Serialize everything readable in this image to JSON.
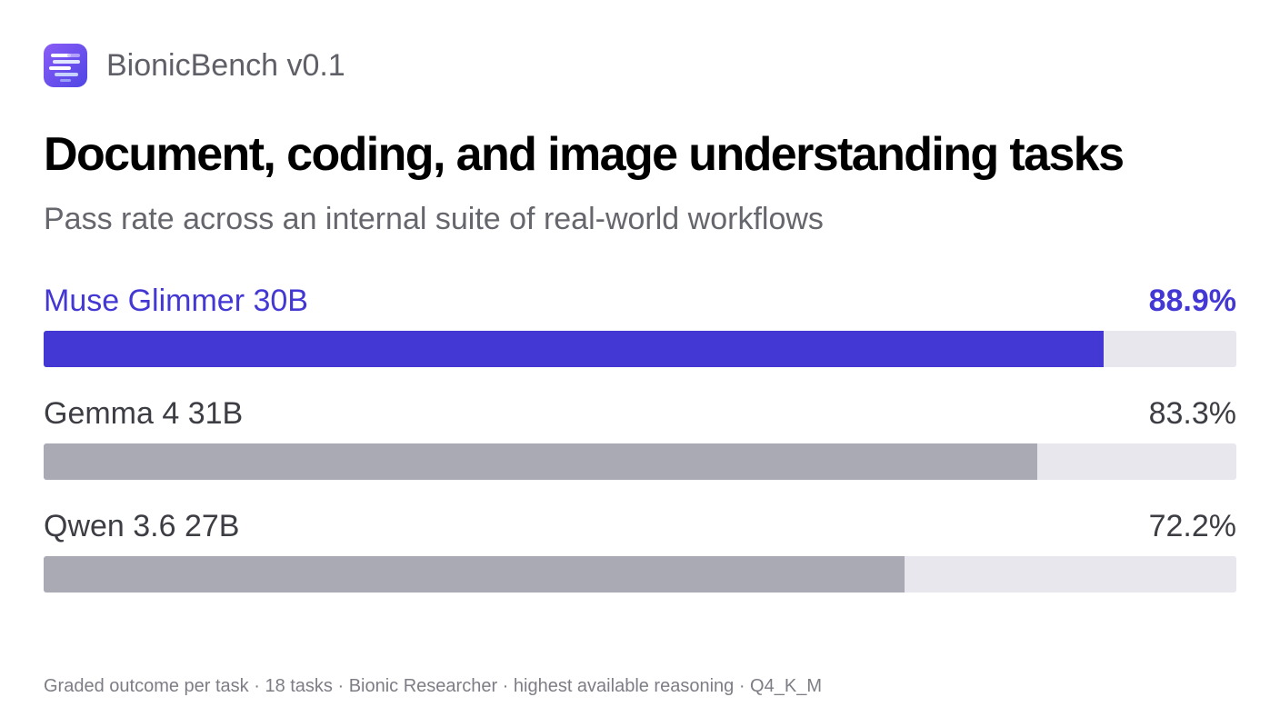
{
  "app": {
    "name": "BionicBench v0.1",
    "logo_icon": "bionicbench-logo-icon"
  },
  "colors": {
    "accent": "#4338d4",
    "bar_default": "#aaaab4",
    "track": "#e7e7ed"
  },
  "chart_data": {
    "type": "bar",
    "orientation": "horizontal",
    "title": "Document, coding, and image understanding tasks",
    "subtitle": "Pass rate across an internal suite of real-world workflows",
    "categories": [
      "Muse Glimmer 30B",
      "Gemma 4 31B",
      "Qwen 3.6 27B"
    ],
    "values": [
      88.9,
      83.3,
      72.2
    ],
    "value_labels": [
      "88.9%",
      "83.3%",
      "72.2%"
    ],
    "highlighted": "Muse Glimmer 30B",
    "xlim": [
      0,
      100
    ],
    "grid": false,
    "legend": "none"
  },
  "footer": {
    "note": "Graded outcome per task · 18 tasks · Bionic Researcher · highest available reasoning · Q4_K_M"
  }
}
